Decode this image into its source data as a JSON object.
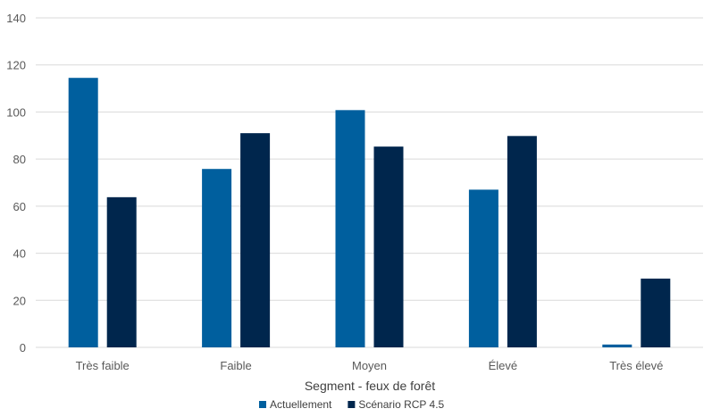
{
  "chart_data": {
    "type": "bar",
    "categories": [
      "Très faible",
      "Faible",
      "Moyen",
      "Élevé",
      "Très élevé"
    ],
    "series": [
      {
        "name": "Actuellement",
        "color": "#005f9e",
        "values": [
          114.5,
          75.8,
          100.8,
          67.0,
          1.2
        ]
      },
      {
        "name": "Scénario RCP 4.5",
        "color": "#00264d",
        "values": [
          63.8,
          91.0,
          85.3,
          89.8,
          29.2
        ]
      }
    ],
    "title": "",
    "xlabel": "Segment - feux de forêt",
    "ylabel": "",
    "ylim": [
      0,
      140
    ],
    "yticks": [
      0,
      20,
      40,
      60,
      80,
      100,
      120,
      140
    ],
    "grid": true,
    "legend": "bottom"
  }
}
